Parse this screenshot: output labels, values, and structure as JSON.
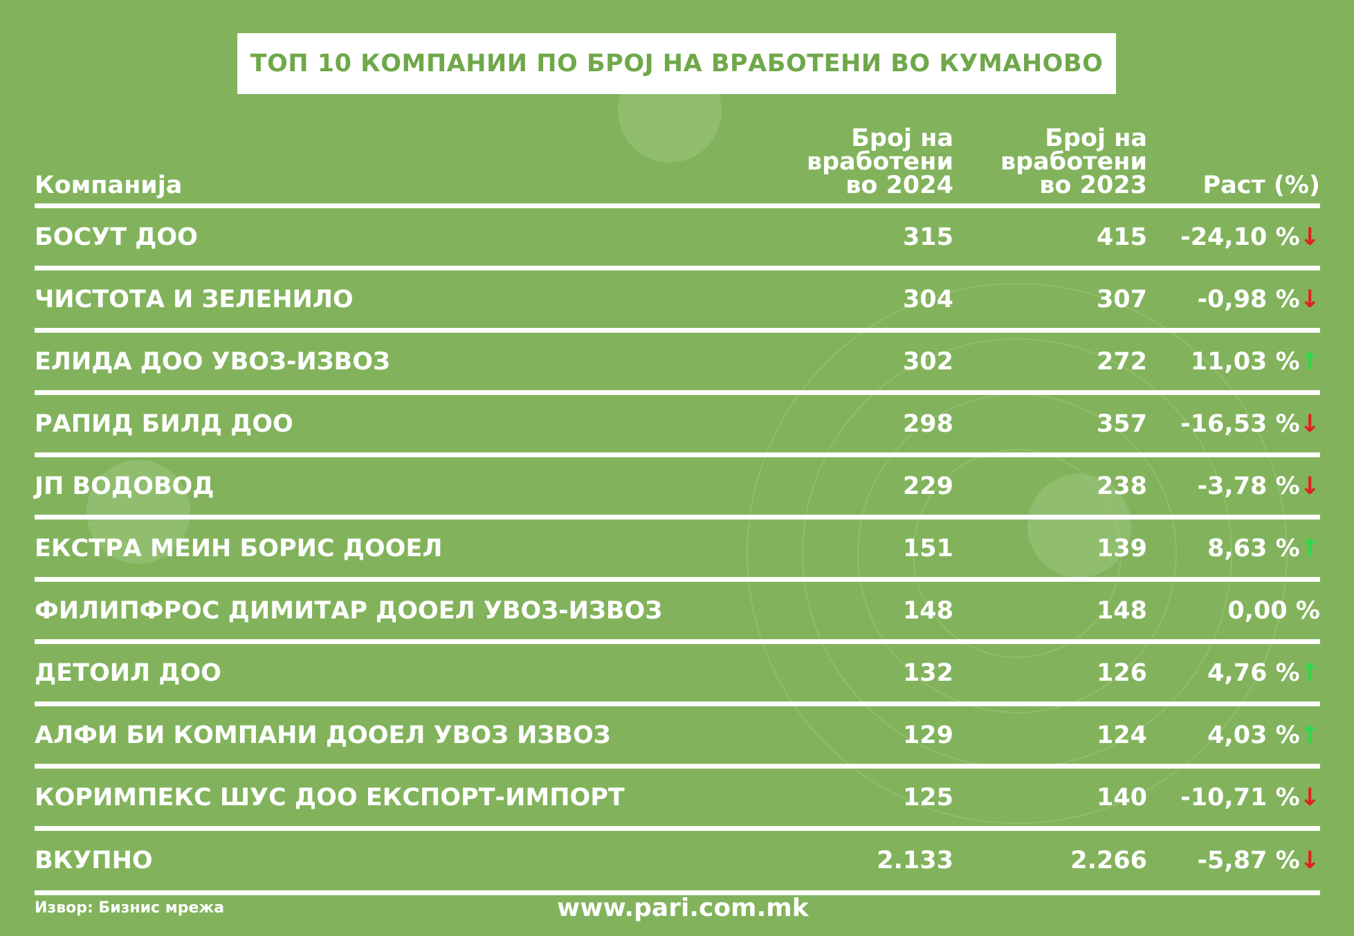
{
  "title": "ТОП 10 КОМПАНИИ ПО БРОЈ НА ВРАБОТЕНИ ВО КУМАНОВО",
  "colors": {
    "background": "#82b35c",
    "title_text": "#6fa84a",
    "down": "#e02020",
    "up": "#2fd84a"
  },
  "chart_data": {
    "type": "table",
    "columns": [
      "Компанија",
      "Број на вработени во 2024",
      "Број на вработени во 2023",
      "Раст (%)"
    ],
    "header_lines": {
      "company": [
        "Компанија"
      ],
      "y2024": [
        "Број на",
        "вработени",
        "во 2024"
      ],
      "y2023": [
        "Број на",
        "вработени",
        "во 2023"
      ],
      "growth": [
        "Раст (%)"
      ]
    },
    "rows": [
      {
        "name": "БОСУТ ДОО",
        "y2024": "315",
        "y2023": "415",
        "growth": "-24,10 %",
        "trend": "down"
      },
      {
        "name": "ЧИСТОТА И ЗЕЛЕНИЛО",
        "y2024": "304",
        "y2023": "307",
        "growth": "-0,98 %",
        "trend": "down"
      },
      {
        "name": "ЕЛИДА ДОО УВОЗ-ИЗВОЗ",
        "y2024": "302",
        "y2023": "272",
        "growth": "11,03 %",
        "trend": "up"
      },
      {
        "name": "РАПИД БИЛД ДОО",
        "y2024": "298",
        "y2023": "357",
        "growth": "-16,53 %",
        "trend": "down"
      },
      {
        "name": "ЈП ВОДОВОД",
        "y2024": "229",
        "y2023": "238",
        "growth": "-3,78 %",
        "trend": "down"
      },
      {
        "name": "ЕКСТРА МЕИН БОРИС ДООЕЛ",
        "y2024": "151",
        "y2023": "139",
        "growth": "8,63 %",
        "trend": "up"
      },
      {
        "name": "ФИЛИПФРОС ДИМИТАР ДООЕЛ УВОЗ-ИЗВОЗ",
        "y2024": "148",
        "y2023": "148",
        "growth": "0,00 %",
        "trend": "none"
      },
      {
        "name": "ДЕТОИЛ ДОО",
        "y2024": "132",
        "y2023": "126",
        "growth": "4,76 %",
        "trend": "up"
      },
      {
        "name": "АЛФИ БИ КОМПАНИ ДООЕЛ УВОЗ ИЗВОЗ",
        "y2024": "129",
        "y2023": "124",
        "growth": "4,03 %",
        "trend": "up"
      },
      {
        "name": "КОРИМПЕКС ШУС ДОО ЕКСПОРТ-ИМПОРТ",
        "y2024": "125",
        "y2023": "140",
        "growth": "-10,71 %",
        "trend": "down"
      },
      {
        "name": "ВКУПНО",
        "y2024": "2.133",
        "y2023": "2.266",
        "growth": "-5,87 %",
        "trend": "down"
      }
    ]
  },
  "footer": {
    "source": "Извор: Бизнис мрежа",
    "site": "www.pari.com.mk"
  }
}
